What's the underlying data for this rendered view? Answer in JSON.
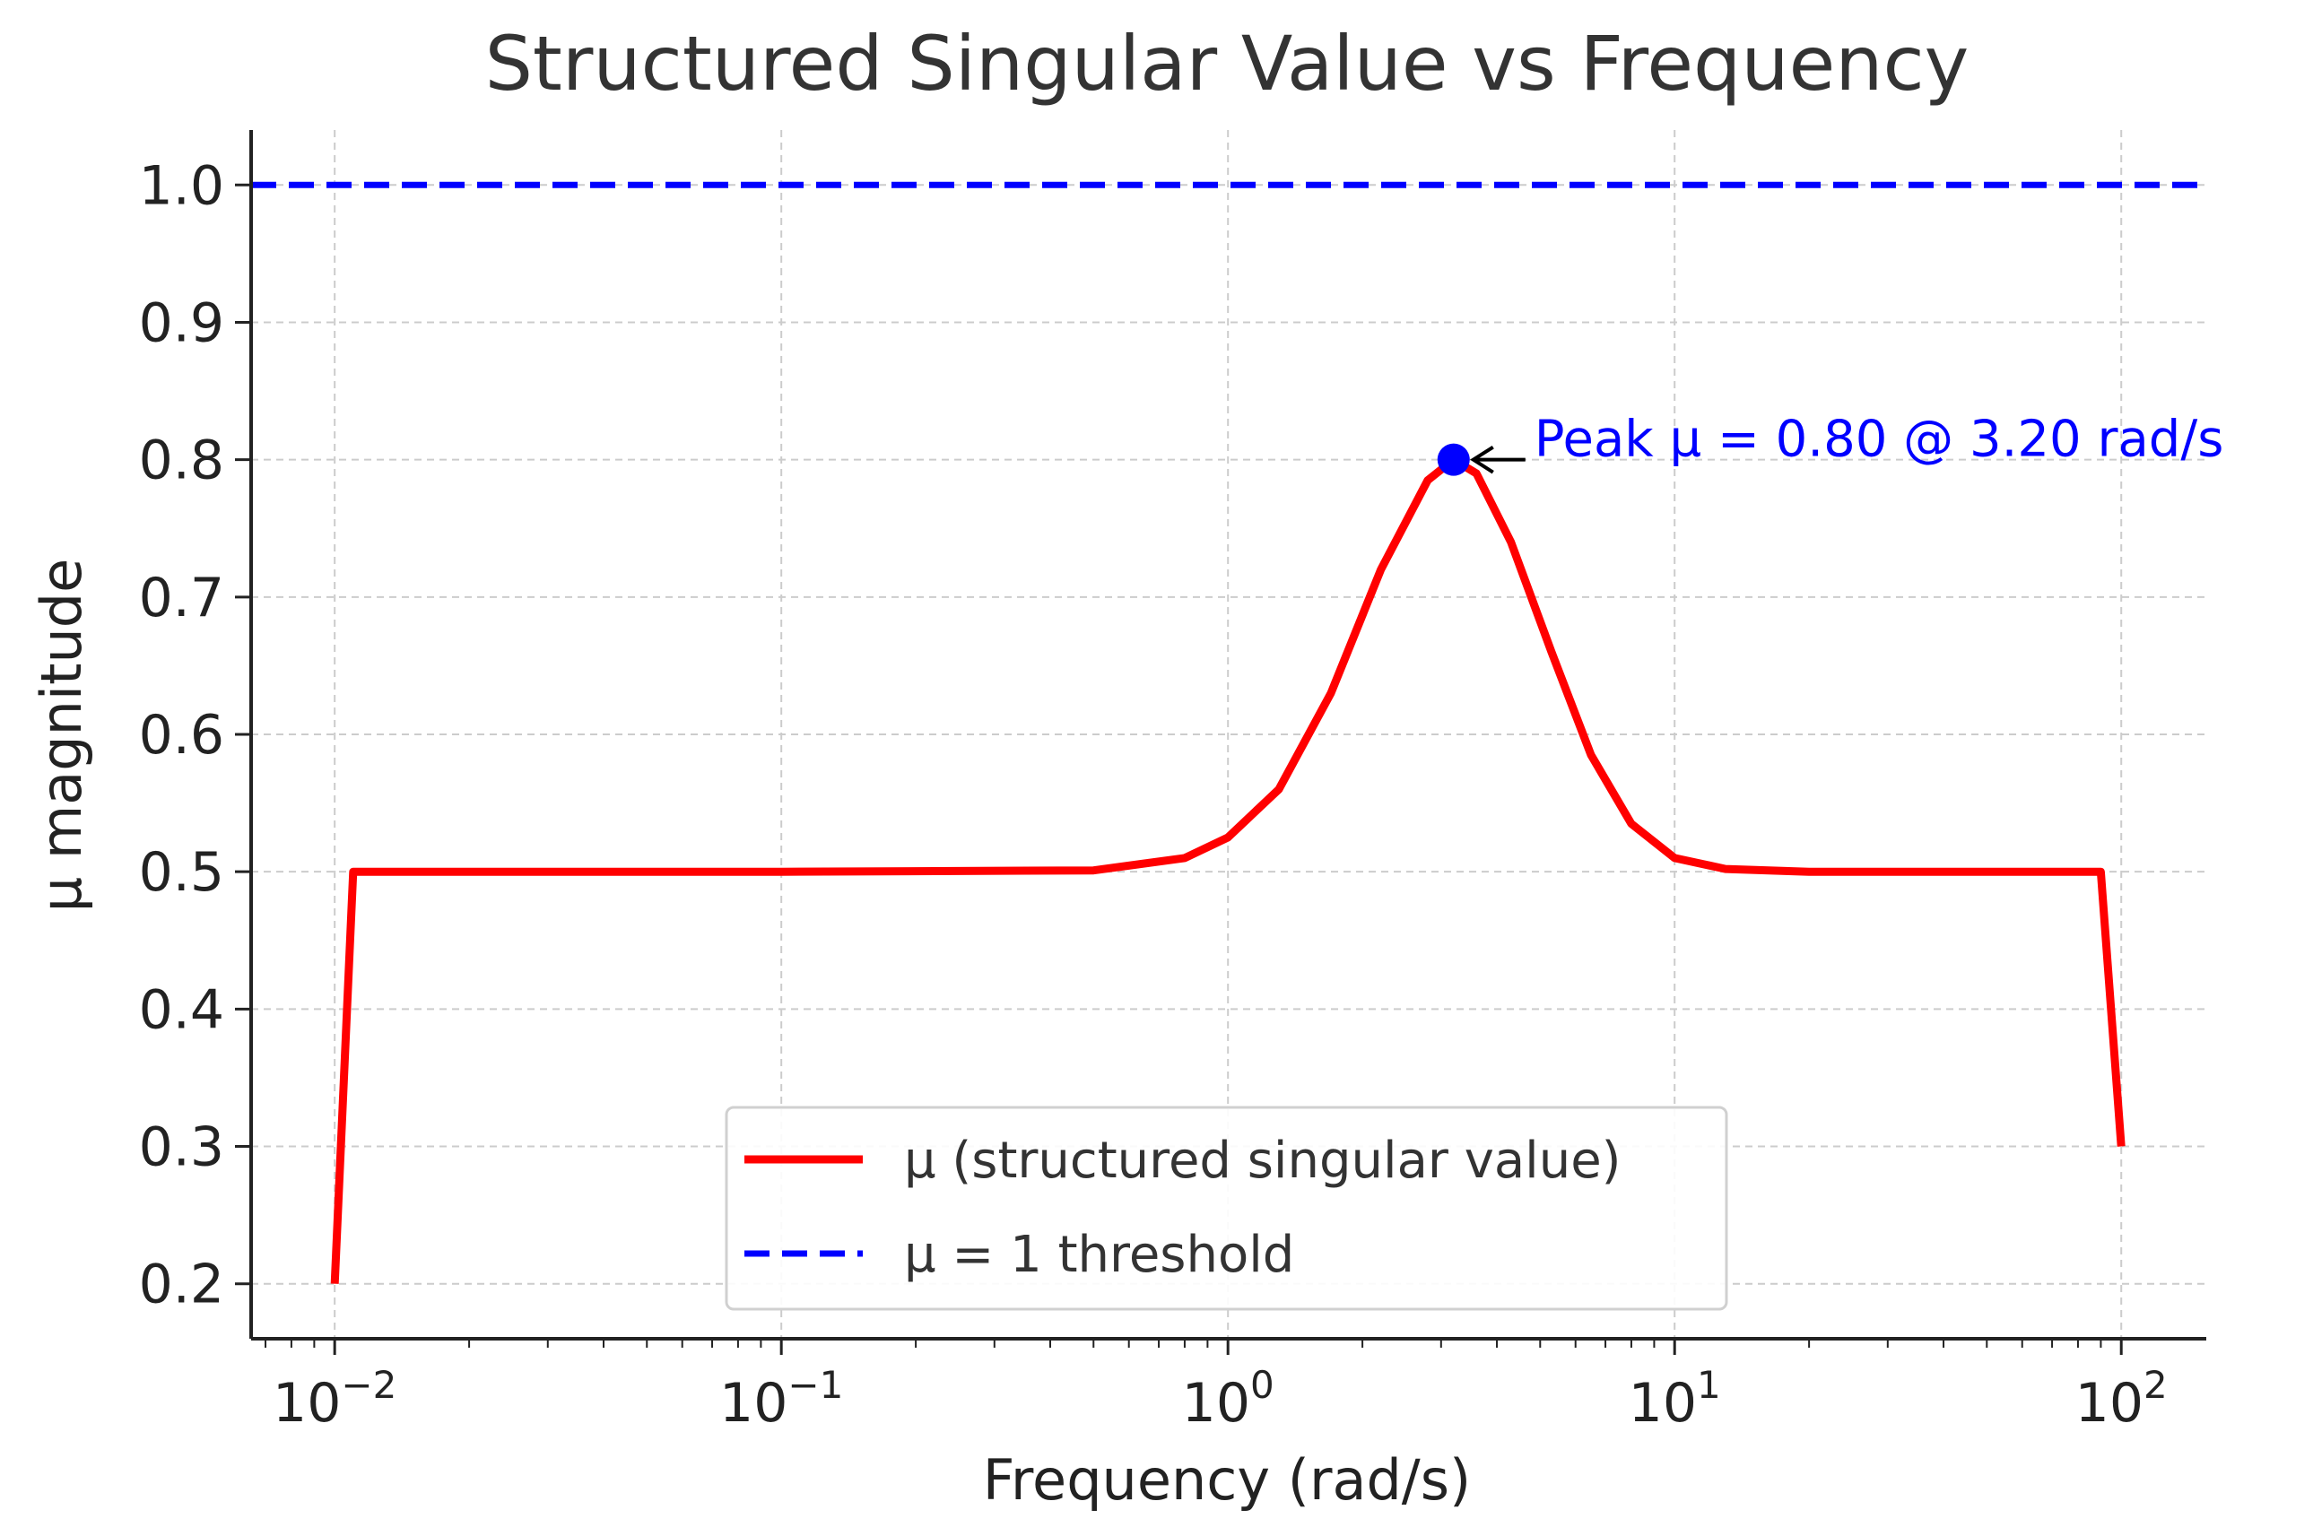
{
  "chart_data": {
    "type": "line",
    "title": "Structured Singular Value vs Frequency",
    "xlabel": "Frequency (rad/s)",
    "ylabel": "μ magnitude",
    "xscale": "log",
    "xlim": [
      0.0065,
      155
    ],
    "ylim": [
      0.16,
      1.04
    ],
    "grid": true,
    "legend_position": "bottom-center",
    "x_ticks": [
      {
        "value": 0.01,
        "base": "10",
        "exp": "−2"
      },
      {
        "value": 0.1,
        "base": "10",
        "exp": "−1"
      },
      {
        "value": 1,
        "base": "10",
        "exp": "0"
      },
      {
        "value": 10,
        "base": "10",
        "exp": "1"
      },
      {
        "value": 100,
        "base": "10",
        "exp": "2"
      }
    ],
    "y_ticks": [
      "0.2",
      "0.3",
      "0.4",
      "0.5",
      "0.6",
      "0.7",
      "0.8",
      "0.9",
      "1.0"
    ],
    "series": [
      {
        "name": "μ (structured singular value)",
        "color": "#ff0000",
        "style": "solid",
        "x": [
          0.01,
          0.011,
          0.1,
          0.5,
          0.8,
          1.0,
          1.3,
          1.7,
          2.2,
          2.8,
          3.2,
          3.6,
          4.3,
          5.3,
          6.5,
          8.0,
          10.0,
          13.0,
          20.0,
          50.0,
          90.0,
          100.0
        ],
        "y": [
          0.2,
          0.5,
          0.5,
          0.501,
          0.51,
          0.525,
          0.56,
          0.63,
          0.72,
          0.785,
          0.8,
          0.79,
          0.74,
          0.66,
          0.585,
          0.535,
          0.51,
          0.502,
          0.5,
          0.5,
          0.5,
          0.3
        ]
      },
      {
        "name": "μ = 1 threshold",
        "color": "#0000ff",
        "style": "dashed",
        "x": [
          0.0065,
          155
        ],
        "y": [
          1.0,
          1.0
        ]
      }
    ],
    "legend": [
      {
        "label": "μ (structured singular value)",
        "color": "#ff0000",
        "style": "solid"
      },
      {
        "label": "μ = 1 threshold",
        "color": "#0000ff",
        "style": "dashed"
      }
    ],
    "annotation": {
      "text": "Peak μ = 0.80 @ 3.20 rad/s",
      "x": 3.2,
      "y": 0.8,
      "color": "#0000ff"
    }
  }
}
